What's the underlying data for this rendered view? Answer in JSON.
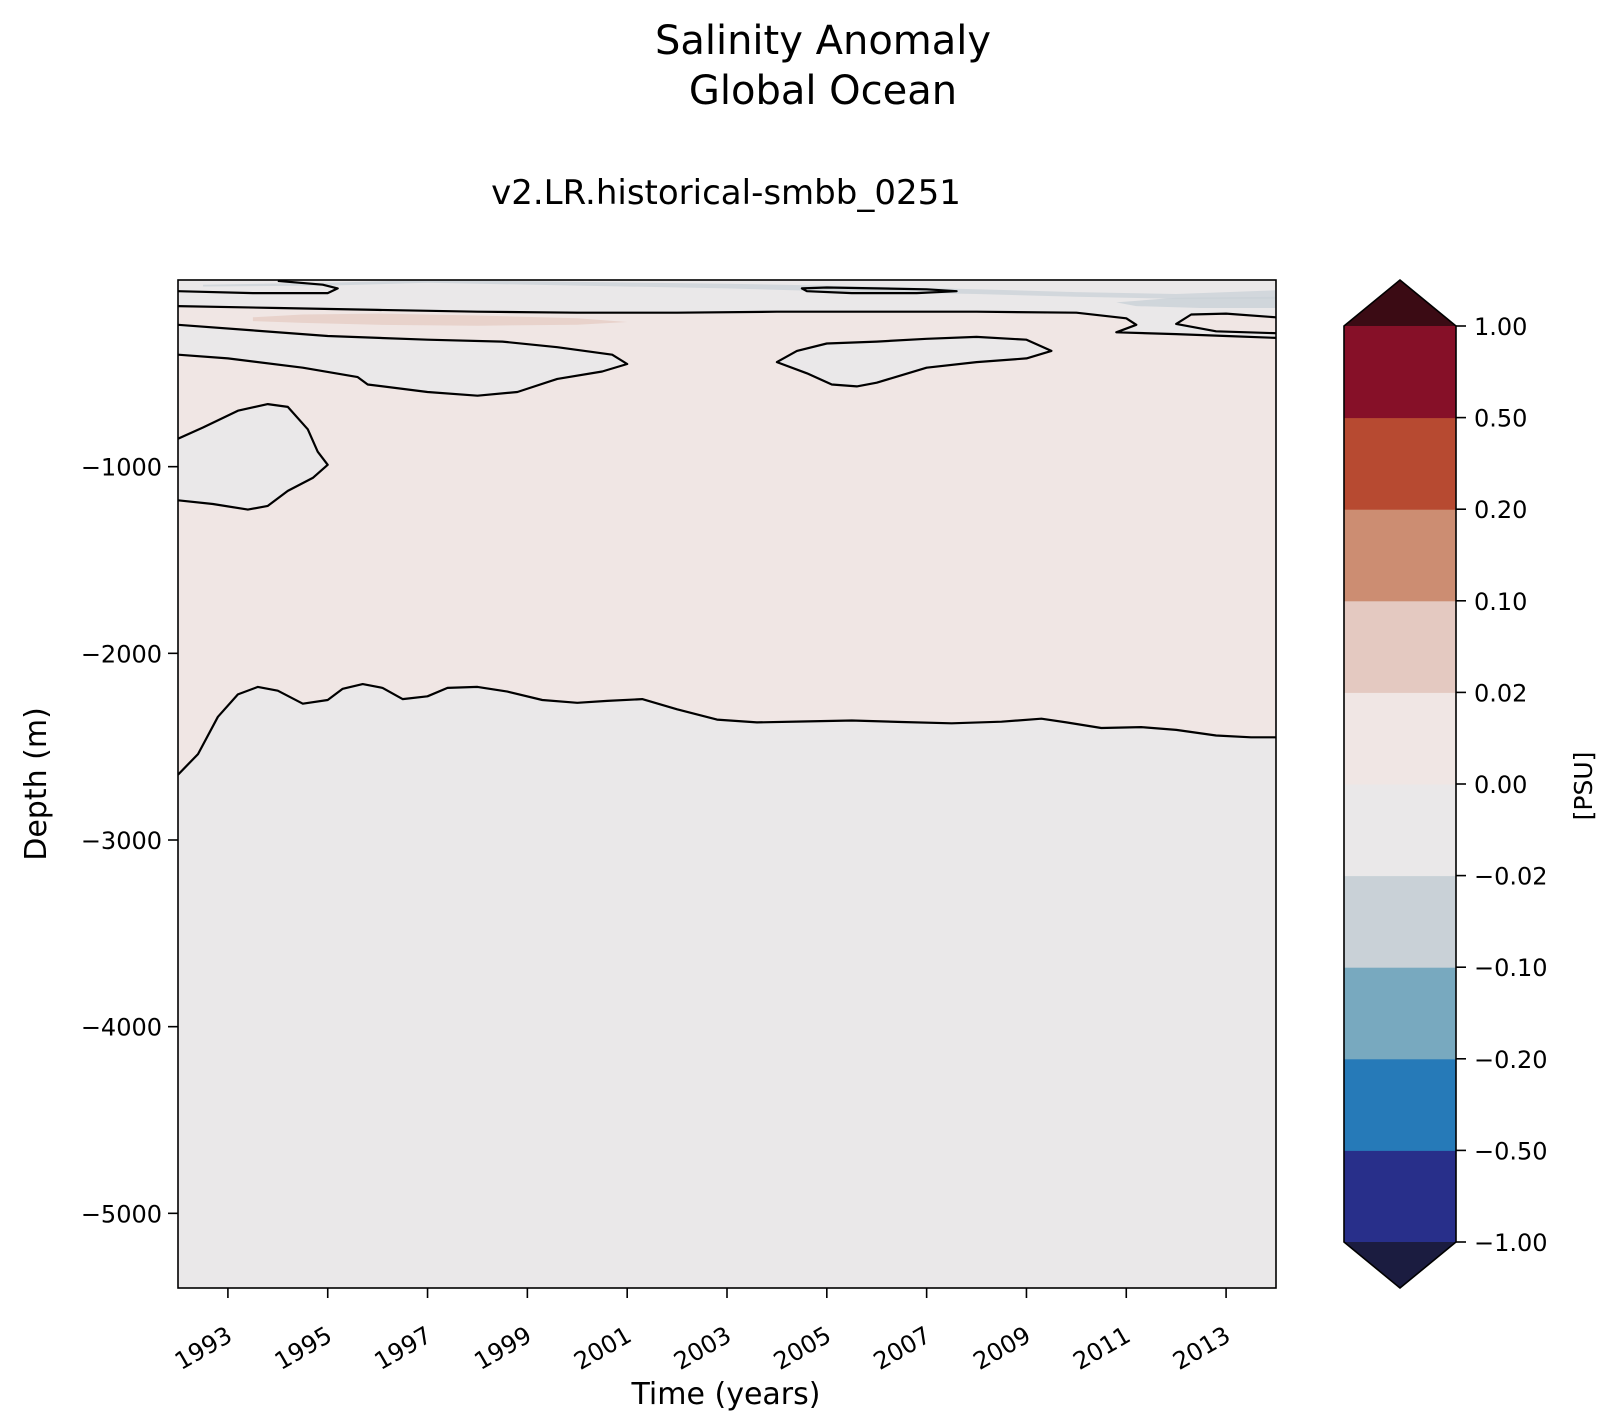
{
  "chart_data": {
    "type": "heatmap",
    "title": "Salinity Anomaly",
    "title_line2": "Global Ocean",
    "subtitle": "v2.LR.historical-smbb_0251",
    "xlabel": "Time (years)",
    "ylabel": "Depth (m)",
    "xlim": [
      1992.0,
      2014.0
    ],
    "ylim": [
      -5400,
      0
    ],
    "x_ticks": [
      "1993",
      "1995",
      "1997",
      "1999",
      "2001",
      "2003",
      "2005",
      "2007",
      "2009",
      "2011",
      "2013"
    ],
    "y_ticks": [
      "−1000",
      "−2000",
      "−3000",
      "−4000",
      "−5000"
    ],
    "colorbar": {
      "label": "[PSU]",
      "levels": [
        "−1.00",
        "−0.50",
        "−0.20",
        "−0.10",
        "−0.02",
        "0.00",
        "0.02",
        "0.10",
        "0.20",
        "0.50",
        "1.00"
      ],
      "colors": [
        "#282f8a",
        "#267ab8",
        "#78a9bf",
        "#c9d1d7",
        "#eae8e9",
        "#f0e6e4",
        "#e4c9c1",
        "#cc8d72",
        "#b74a31",
        "#861028"
      ],
      "extend_low_color": "#1b1c40",
      "extend_high_color": "#3b0b14"
    },
    "regions": [
      {
        "band": "0.00 to 0.02",
        "color": "#f0e6e4",
        "description": "most of upper 2300 m"
      },
      {
        "band": "−0.02 to 0.00",
        "color": "#eae8e9",
        "description": "deep ocean below ~2300 m and several upper pockets"
      },
      {
        "band": "−0.10 to −0.02",
        "color": "#c9d1d7",
        "description": "thin near-surface layer"
      },
      {
        "band": "0.02 to 0.10",
        "color": "#e4c9c1",
        "description": "thin layer ~200 m, 1993–2001"
      }
    ],
    "contour_zero_deep": [
      [
        1992.0,
        -2650
      ],
      [
        1992.4,
        -2540
      ],
      [
        1992.8,
        -2340
      ],
      [
        1993.2,
        -2220
      ],
      [
        1993.6,
        -2180
      ],
      [
        1994.0,
        -2200
      ],
      [
        1994.5,
        -2270
      ],
      [
        1995.0,
        -2250
      ],
      [
        1995.3,
        -2190
      ],
      [
        1995.7,
        -2165
      ],
      [
        1996.1,
        -2185
      ],
      [
        1996.5,
        -2245
      ],
      [
        1997.0,
        -2230
      ],
      [
        1997.4,
        -2185
      ],
      [
        1998.0,
        -2180
      ],
      [
        1998.6,
        -2205
      ],
      [
        1999.3,
        -2250
      ],
      [
        2000.0,
        -2265
      ],
      [
        2000.6,
        -2255
      ],
      [
        2001.3,
        -2245
      ],
      [
        2002.0,
        -2300
      ],
      [
        2002.8,
        -2355
      ],
      [
        2003.6,
        -2370
      ],
      [
        2004.5,
        -2365
      ],
      [
        2005.5,
        -2360
      ],
      [
        2006.5,
        -2368
      ],
      [
        2007.5,
        -2375
      ],
      [
        2008.5,
        -2366
      ],
      [
        2009.3,
        -2350
      ],
      [
        2009.8,
        -2370
      ],
      [
        2010.5,
        -2400
      ],
      [
        2011.3,
        -2395
      ],
      [
        2012.0,
        -2410
      ],
      [
        2012.8,
        -2440
      ],
      [
        2013.5,
        -2450
      ],
      [
        2014.0,
        -2450
      ]
    ],
    "contour_zero_upper_left_pocket": [
      [
        1992.0,
        -850
      ],
      [
        1992.5,
        -790
      ],
      [
        1993.2,
        -700
      ],
      [
        1993.8,
        -665
      ],
      [
        1994.2,
        -680
      ],
      [
        1994.6,
        -800
      ],
      [
        1994.8,
        -920
      ],
      [
        1995.0,
        -990
      ],
      [
        1994.7,
        -1060
      ],
      [
        1994.2,
        -1130
      ],
      [
        1993.8,
        -1210
      ],
      [
        1993.4,
        -1230
      ],
      [
        1992.7,
        -1200
      ],
      [
        1992.0,
        -1180
      ]
    ],
    "contour_zero_layer_a": [
      [
        1992.0,
        -400
      ],
      [
        1993.0,
        -420
      ],
      [
        1994.5,
        -470
      ],
      [
        1995.6,
        -520
      ],
      [
        1995.8,
        -560
      ],
      [
        1997.0,
        -600
      ],
      [
        1998.0,
        -620
      ],
      [
        1998.8,
        -600
      ],
      [
        1999.6,
        -530
      ],
      [
        2000.5,
        -490
      ],
      [
        2001.0,
        -450
      ],
      [
        2000.7,
        -400
      ],
      [
        1999.6,
        -360
      ],
      [
        1998.5,
        -330
      ],
      [
        1997.0,
        -320
      ],
      [
        1995.0,
        -300
      ],
      [
        1993.5,
        -270
      ],
      [
        1992.0,
        -240
      ]
    ],
    "contour_zero_layer_b": [
      [
        1992.0,
        -60
      ],
      [
        1993.5,
        -70
      ],
      [
        1995.0,
        -70
      ],
      [
        1995.2,
        -45
      ],
      [
        1994.9,
        -25
      ],
      [
        1994.0,
        -5
      ]
    ],
    "contour_zero_layer_c": [
      [
        1992.0,
        -140
      ],
      [
        1994.0,
        -150
      ],
      [
        1996.0,
        -160
      ],
      [
        1998.0,
        -170
      ],
      [
        2000.0,
        -175
      ],
      [
        2002.0,
        -175
      ],
      [
        2004.0,
        -170
      ],
      [
        2006.0,
        -170
      ],
      [
        2008.0,
        -170
      ],
      [
        2010.0,
        -175
      ],
      [
        2011.0,
        -205
      ],
      [
        2011.2,
        -240
      ],
      [
        2010.8,
        -280
      ],
      [
        2012.0,
        -290
      ],
      [
        2013.0,
        -300
      ],
      [
        2014.0,
        -310
      ]
    ],
    "contour_zero_right_pocket": [
      [
        2014.0,
        -200
      ],
      [
        2013.0,
        -180
      ],
      [
        2012.3,
        -185
      ],
      [
        2012.0,
        -235
      ],
      [
        2012.8,
        -275
      ],
      [
        2014.0,
        -285
      ]
    ],
    "contour_zero_mid_pocket": [
      [
        2004.0,
        -440
      ],
      [
        2004.4,
        -380
      ],
      [
        2005.0,
        -340
      ],
      [
        2006.0,
        -330
      ],
      [
        2007.0,
        -315
      ],
      [
        2008.0,
        -305
      ],
      [
        2009.0,
        -320
      ],
      [
        2009.5,
        -380
      ],
      [
        2009.0,
        -420
      ],
      [
        2008.0,
        -440
      ],
      [
        2007.0,
        -470
      ],
      [
        2006.5,
        -510
      ],
      [
        2006.0,
        -550
      ],
      [
        2005.6,
        -570
      ],
      [
        2005.1,
        -560
      ],
      [
        2004.6,
        -500
      ],
      [
        2004.0,
        -440
      ]
    ],
    "contour_zero_top_pocket": [
      [
        2004.5,
        -45
      ],
      [
        2005.0,
        -40
      ],
      [
        2006.0,
        -45
      ],
      [
        2007.0,
        -50
      ],
      [
        2007.6,
        -60
      ],
      [
        2006.8,
        -70
      ],
      [
        2005.5,
        -70
      ],
      [
        2004.6,
        -60
      ],
      [
        2004.5,
        -45
      ]
    ]
  }
}
